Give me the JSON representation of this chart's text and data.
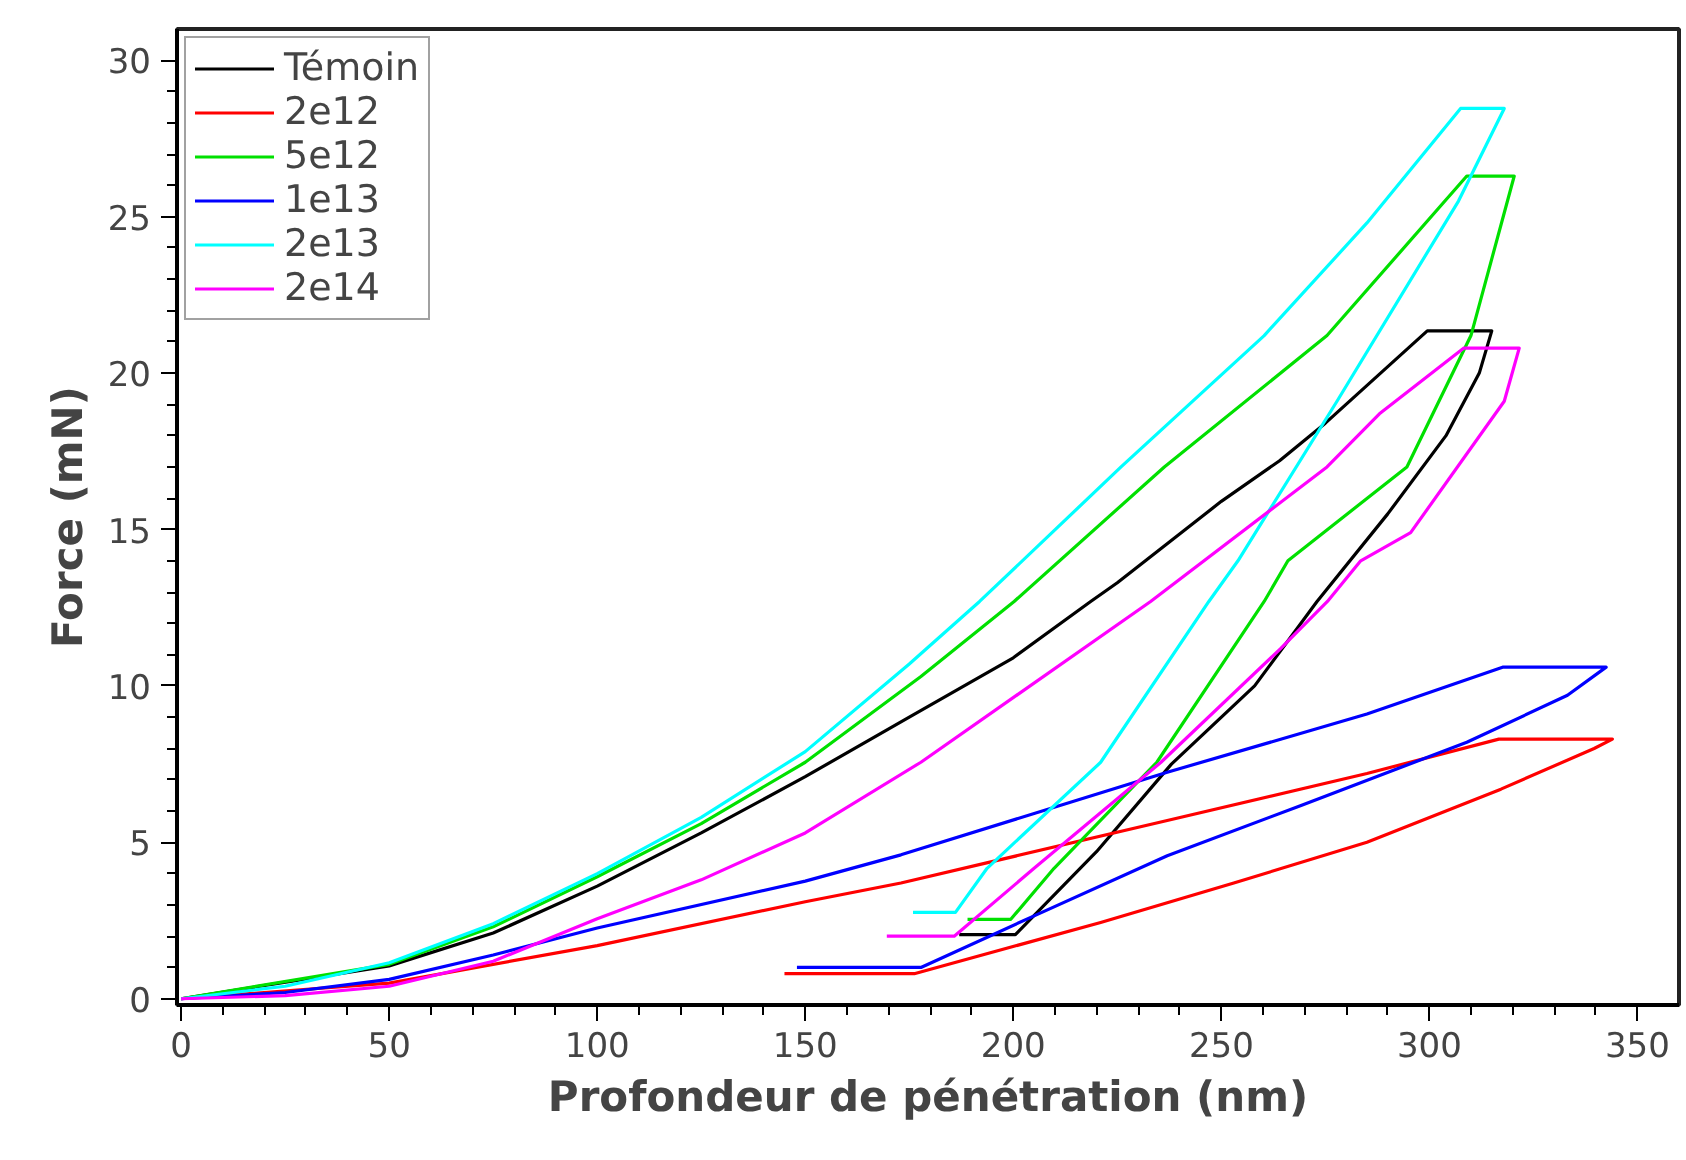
{
  "chart_data": {
    "type": "line",
    "xlabel": "Profondeur de pénétration (nm)",
    "ylabel": "Force (mN)",
    "xlim": [
      -1,
      360
    ],
    "ylim": [
      -0.2,
      31
    ],
    "xticks": [
      0,
      50,
      100,
      150,
      200,
      250,
      300,
      350
    ],
    "yticks": [
      0,
      5,
      10,
      15,
      20,
      25,
      30
    ],
    "grid": false,
    "legend": "top left",
    "marker": "none",
    "line_style": "solid",
    "series": [
      {
        "name": "Témoin",
        "color": "#000000",
        "x": [
          0,
          50,
          75,
          100,
          125,
          150,
          175,
          200,
          218.6,
          225,
          250,
          264,
          275,
          299.5,
          315,
          312,
          304,
          290,
          273,
          258,
          238,
          220,
          200.5,
          187
        ],
        "values": [
          0,
          1.05,
          2.1,
          3.6,
          5.3,
          7.1,
          9.0,
          10.9,
          12.7,
          13.3,
          15.9,
          17.2,
          18.4,
          21.35,
          21.35,
          20,
          18,
          15.5,
          12.7,
          10,
          7.5,
          4.7,
          2.05,
          2.05
        ]
      },
      {
        "name": "2e12",
        "color": "#ff0000",
        "x": [
          0,
          50,
          100,
          150,
          173,
          237,
          285,
          316.7,
          344,
          339.6,
          317.2,
          285,
          253,
          221,
          176.2,
          145
        ],
        "values": [
          0,
          0.5,
          1.7,
          3.1,
          3.7,
          5.7,
          7.2,
          8.3,
          8.3,
          8.0,
          6.7,
          5.0,
          3.7,
          2.44,
          0.8,
          0.8
        ]
      },
      {
        "name": "5e12",
        "color": "#00e000",
        "x": [
          0,
          50,
          75,
          100,
          125,
          150,
          177.8,
          200.2,
          236.3,
          275.4,
          309,
          320.4,
          310,
          294.6,
          266,
          260.3,
          234.5,
          209.8,
          199.4,
          189
        ],
        "values": [
          0,
          1.1,
          2.3,
          3.9,
          5.6,
          7.56,
          10.3,
          12.7,
          17.0,
          21.2,
          26.3,
          26.3,
          21.2,
          17.0,
          14.0,
          12.7,
          7.56,
          4.17,
          2.54,
          2.54
        ]
      },
      {
        "name": "1e13",
        "color": "#0000ff",
        "x": [
          0,
          25,
          50,
          75,
          100,
          150,
          173,
          237,
          285,
          317.6,
          342.5,
          333.2,
          309,
          269,
          237,
          205,
          177.8,
          148
        ],
        "values": [
          0,
          0.2,
          0.62,
          1.4,
          2.26,
          3.76,
          4.6,
          7.24,
          9.1,
          10.6,
          10.6,
          9.7,
          8.2,
          6.17,
          4.57,
          2.65,
          1.0,
          1.0
        ]
      },
      {
        "name": "2e13",
        "color": "#00ffff",
        "x": [
          0,
          25,
          50,
          75,
          100,
          125,
          150,
          175,
          191.9,
          225.9,
          260.3,
          285,
          307.5,
          318,
          307,
          277.8,
          254,
          247,
          221,
          193.7,
          186.1,
          175.9
        ],
        "values": [
          0,
          0.4,
          1.15,
          2.4,
          4.0,
          5.8,
          7.9,
          10.7,
          12.7,
          17.0,
          21.2,
          24.8,
          28.46,
          28.46,
          25.5,
          19.1,
          14.0,
          12.7,
          7.56,
          4.17,
          2.76,
          2.76
        ]
      },
      {
        "name": "2e14",
        "color": "#ff00ff",
        "x": [
          0,
          25,
          50,
          75,
          100,
          125,
          150,
          177.8,
          233,
          275.4,
          288,
          308.3,
          321.6,
          318,
          295.5,
          283.5,
          275.5,
          264.3,
          235.5,
          205,
          185.8,
          169.6
        ],
        "values": [
          0,
          0.1,
          0.4,
          1.2,
          2.56,
          3.8,
          5.3,
          7.56,
          12.7,
          17.0,
          18.7,
          20.8,
          20.8,
          19.1,
          14.9,
          14.0,
          12.7,
          11.2,
          7.56,
          4.17,
          2.0,
          2.0
        ]
      }
    ]
  }
}
